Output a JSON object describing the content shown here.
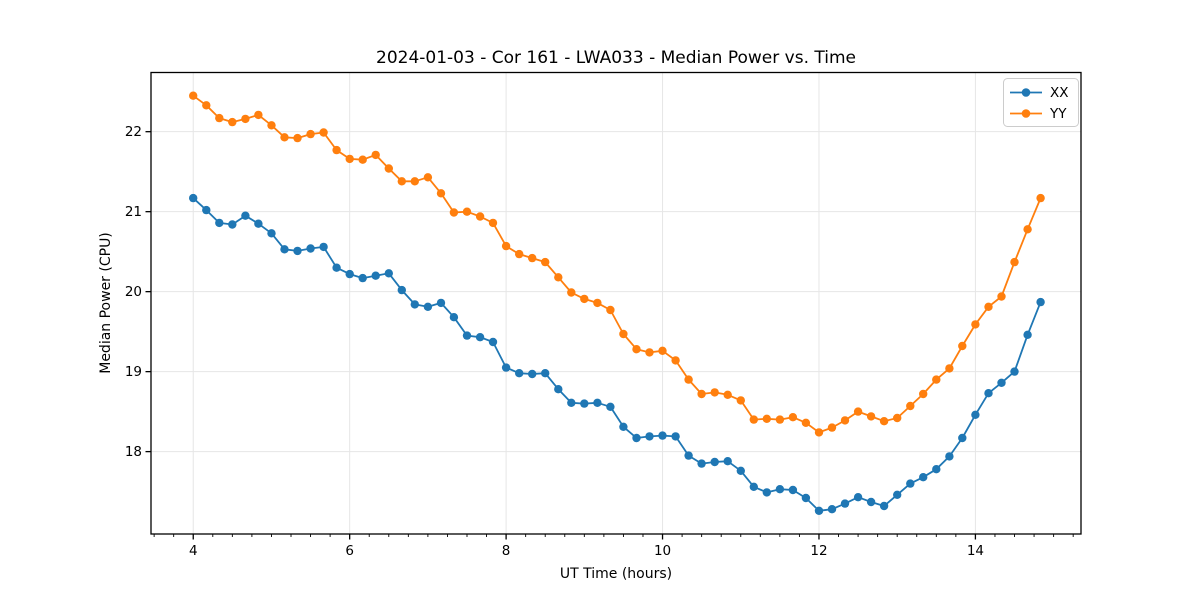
{
  "chart_data": {
    "type": "line",
    "title": "2024-01-03 - Cor 161 - LWA033 - Median Power vs. Time",
    "xlabel": "UT Time (hours)",
    "ylabel": "Median Power (CPU)",
    "xlim": [
      3.46,
      15.35
    ],
    "ylim": [
      16.97,
      22.74
    ],
    "xticks": [
      4,
      6,
      8,
      10,
      12,
      14
    ],
    "yticks": [
      18,
      19,
      20,
      21,
      22
    ],
    "minor_xtick_step": 0.25,
    "grid": true,
    "grid_color": "#e6e6e6",
    "spine_color": "#000000",
    "legend_position": "upper right",
    "marker": "o",
    "x": [
      4.0,
      4.167,
      4.333,
      4.5,
      4.667,
      4.833,
      5.0,
      5.167,
      5.333,
      5.5,
      5.667,
      5.833,
      6.0,
      6.167,
      6.333,
      6.5,
      6.667,
      6.833,
      7.0,
      7.167,
      7.333,
      7.5,
      7.667,
      7.833,
      8.0,
      8.167,
      8.333,
      8.5,
      8.667,
      8.833,
      9.0,
      9.167,
      9.333,
      9.5,
      9.667,
      9.833,
      10.0,
      10.167,
      10.333,
      10.5,
      10.667,
      10.833,
      11.0,
      11.167,
      11.333,
      11.5,
      11.667,
      11.833,
      12.0,
      12.167,
      12.333,
      12.5,
      12.667,
      12.833,
      13.0,
      13.167,
      13.333,
      13.5,
      13.667,
      13.833,
      14.0,
      14.167,
      14.333,
      14.5,
      14.667,
      14.833
    ],
    "series": [
      {
        "name": "XX",
        "color": "#1f77b4",
        "values": [
          21.17,
          21.02,
          20.86,
          20.84,
          20.95,
          20.85,
          20.73,
          20.53,
          20.51,
          20.54,
          20.56,
          20.3,
          20.22,
          20.17,
          20.2,
          20.23,
          20.02,
          19.84,
          19.81,
          19.86,
          19.68,
          19.45,
          19.43,
          19.37,
          19.05,
          18.98,
          18.97,
          18.98,
          18.78,
          18.61,
          18.6,
          18.61,
          18.56,
          18.31,
          18.17,
          18.19,
          18.2,
          18.19,
          17.95,
          17.85,
          17.87,
          17.88,
          17.76,
          17.56,
          17.49,
          17.53,
          17.52,
          17.42,
          17.26,
          17.28,
          17.35,
          17.43,
          17.37,
          17.32,
          17.46,
          17.6,
          17.68,
          17.78,
          17.94,
          18.17,
          18.46,
          18.73,
          18.86,
          19.0,
          19.46,
          19.87
        ]
      },
      {
        "name": "YY",
        "color": "#ff7f0e",
        "values": [
          22.45,
          22.33,
          22.17,
          22.12,
          22.16,
          22.21,
          22.08,
          21.93,
          21.92,
          21.97,
          21.99,
          21.77,
          21.66,
          21.65,
          21.71,
          21.54,
          21.38,
          21.38,
          21.43,
          21.23,
          20.99,
          21.0,
          20.94,
          20.86,
          20.57,
          20.47,
          20.42,
          20.37,
          20.18,
          19.99,
          19.91,
          19.86,
          19.77,
          19.47,
          19.28,
          19.24,
          19.26,
          19.14,
          18.9,
          18.72,
          18.74,
          18.71,
          18.64,
          18.4,
          18.41,
          18.4,
          18.43,
          18.36,
          18.24,
          18.3,
          18.39,
          18.5,
          18.44,
          18.38,
          18.42,
          18.57,
          18.72,
          18.9,
          19.04,
          19.32,
          19.59,
          19.81,
          19.94,
          20.37,
          20.78,
          21.17
        ]
      }
    ]
  }
}
